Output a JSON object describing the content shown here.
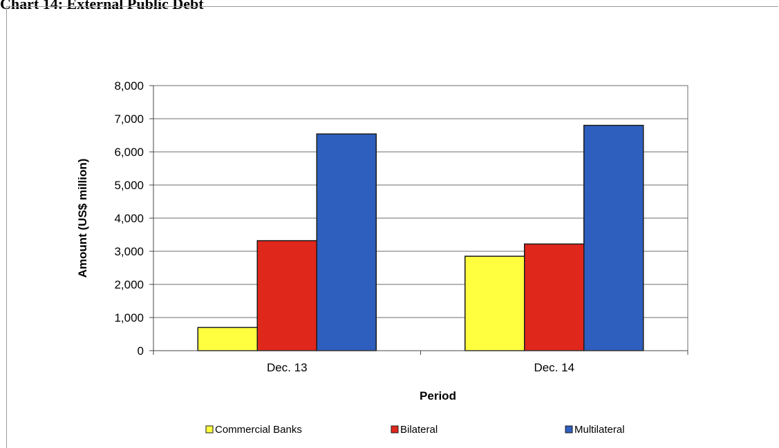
{
  "page": {
    "title": "Chart 14: External Public Debt"
  },
  "chart_data": {
    "type": "bar",
    "title": "",
    "xlabel": "Period",
    "ylabel": "Amount (US$ million)",
    "categories": [
      "Dec. 13",
      "Dec. 14"
    ],
    "series": [
      {
        "name": "Commercial Banks",
        "values": [
          700,
          2850
        ],
        "color": "#ffff40"
      },
      {
        "name": "Bilateral",
        "values": [
          3320,
          3220
        ],
        "color": "#e0271c"
      },
      {
        "name": "Multilateral",
        "values": [
          6540,
          6800
        ],
        "color": "#2e5fbf"
      }
    ],
    "ylim": [
      0,
      8000
    ],
    "yticks": [
      0,
      1000,
      2000,
      3000,
      4000,
      5000,
      6000,
      7000,
      8000
    ],
    "ytick_labels": [
      "0",
      "1,000",
      "2,000",
      "3,000",
      "4,000",
      "5,000",
      "6,000",
      "7,000",
      "8,000"
    ],
    "grid": "horizontal",
    "legend": "bottom"
  }
}
